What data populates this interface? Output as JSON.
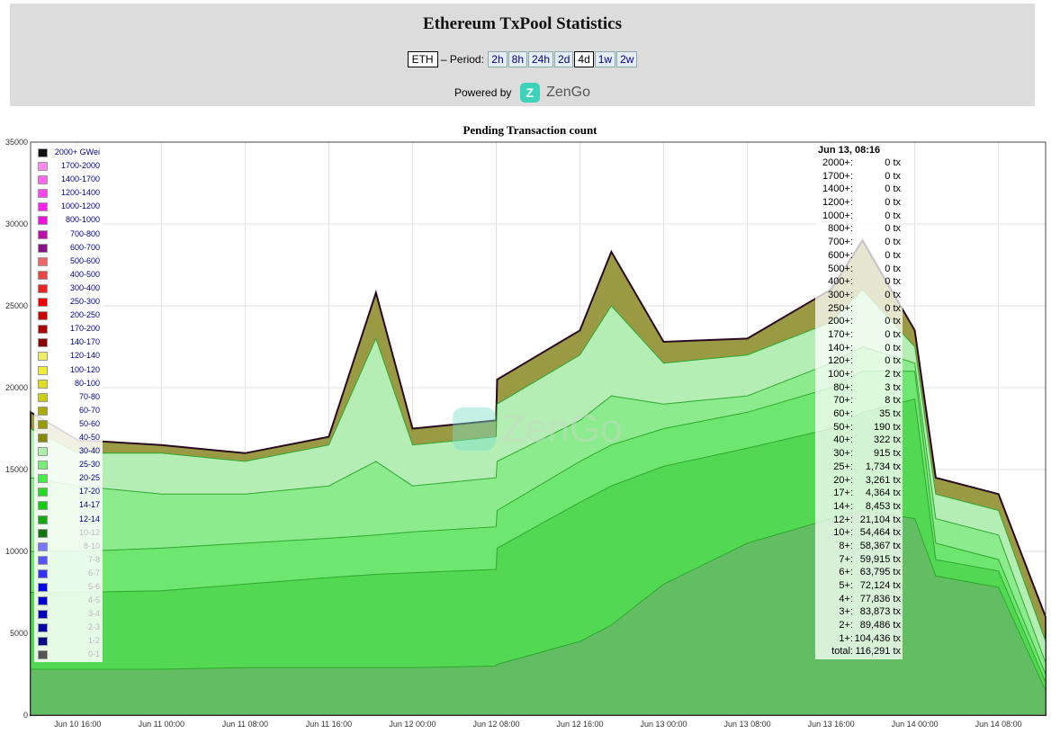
{
  "header": {
    "title": "Ethereum TxPool Statistics",
    "currency": "ETH",
    "period_label": "– Period:",
    "periods": [
      "2h",
      "8h",
      "24h",
      "2d",
      "4d",
      "1w",
      "2w"
    ],
    "active_period": "4d",
    "powered_by": "Powered by",
    "brand": "ZenGo"
  },
  "chart_data": {
    "type": "area",
    "title": "Pending Transaction count",
    "xlabel": "",
    "ylabel": "",
    "ylim": [
      0,
      35000
    ],
    "yticks": [
      0,
      5000,
      10000,
      15000,
      20000,
      25000,
      30000,
      35000
    ],
    "xlim": [
      "2024-06-10 11:30",
      "2024-06-14 12:30"
    ],
    "xticks": [
      "Jun 10 16:00",
      "Jun 11 00:00",
      "Jun 11 08:00",
      "Jun 11 16:00",
      "Jun 12 00:00",
      "Jun 12 08:00",
      "Jun 12 16:00",
      "Jun 13 00:00",
      "Jun 13 08:00",
      "Jun 13 16:00",
      "Jun 14 00:00",
      "Jun 14 08:00"
    ],
    "grid": true,
    "legend_position": "top-left",
    "x": [
      "Jun 10 11:30",
      "Jun 10 16:00",
      "Jun 11 00:00",
      "Jun 11 08:00",
      "Jun 11 16:00",
      "Jun 11 20:30",
      "Jun 12 00:00",
      "Jun 12 07:59",
      "Jun 12 08:05",
      "Jun 12 16:00",
      "Jun 12 19:00",
      "Jun 13 00:00",
      "Jun 13 08:00",
      "Jun 13 16:00",
      "Jun 13 19:00",
      "Jun 14 00:00",
      "Jun 14 02:00",
      "Jun 14 08:00",
      "Jun 14 12:30"
    ],
    "series": [
      {
        "name": "1-2",
        "values": [
          2800,
          2800,
          2800,
          2900,
          2900,
          2900,
          2900,
          3000,
          3100,
          4500,
          5500,
          8000,
          10500,
          12000,
          12500,
          12000,
          8500,
          7800,
          1500
        ]
      },
      {
        "name": "5-6",
        "values": [
          7500,
          7500,
          7600,
          8000,
          8400,
          8600,
          8700,
          8900,
          10200,
          13000,
          14000,
          15200,
          16300,
          17500,
          18500,
          19300,
          9500,
          8800,
          2000
        ]
      },
      {
        "name": "12-14",
        "values": [
          10000,
          10000,
          10200,
          10500,
          10800,
          11000,
          11200,
          11500,
          12500,
          15500,
          16500,
          17500,
          18500,
          20000,
          21000,
          21000,
          10500,
          9500,
          2500
        ]
      },
      {
        "name": "20-25",
        "values": [
          14500,
          14000,
          13500,
          13500,
          14000,
          15500,
          14000,
          14500,
          15500,
          18000,
          19500,
          19000,
          19500,
          21500,
          22500,
          21500,
          12000,
          11000,
          3200
        ]
      },
      {
        "name": "30-40",
        "values": [
          17500,
          16000,
          16000,
          15500,
          16500,
          23000,
          16500,
          17000,
          19000,
          22000,
          25000,
          21500,
          22000,
          24000,
          26000,
          22500,
          13500,
          12500,
          4500
        ]
      },
      {
        "name": "2000+ GWei",
        "values": [
          18500,
          16800,
          16500,
          16000,
          17000,
          25800,
          17500,
          18000,
          20500,
          23500,
          28300,
          22800,
          23000,
          26000,
          29000,
          23500,
          14500,
          13500,
          6000
        ]
      }
    ],
    "legend": [
      {
        "name": "2000+ GWei",
        "color": "#111111",
        "visible": true
      },
      {
        "name": "1700-2000",
        "color": "#ff88ee",
        "visible": true
      },
      {
        "name": "1400-1700",
        "color": "#ff66ee",
        "visible": true
      },
      {
        "name": "1200-1400",
        "color": "#ff44ee",
        "visible": true
      },
      {
        "name": "1000-1200",
        "color": "#ff22ee",
        "visible": true
      },
      {
        "name": "800-1000",
        "color": "#ee11dd",
        "visible": true
      },
      {
        "name": "700-800",
        "color": "#bb11aa",
        "visible": true
      },
      {
        "name": "600-700",
        "color": "#881188",
        "visible": true
      },
      {
        "name": "500-600",
        "color": "#ee6666",
        "visible": true
      },
      {
        "name": "400-500",
        "color": "#ee4444",
        "visible": true
      },
      {
        "name": "300-400",
        "color": "#ee2222",
        "visible": true
      },
      {
        "name": "250-300",
        "color": "#ee0000",
        "visible": true
      },
      {
        "name": "200-250",
        "color": "#cc0000",
        "visible": true
      },
      {
        "name": "170-200",
        "color": "#aa0000",
        "visible": true
      },
      {
        "name": "140-170",
        "color": "#880000",
        "visible": true
      },
      {
        "name": "120-140",
        "color": "#eeee66",
        "visible": true
      },
      {
        "name": "100-120",
        "color": "#eeee33",
        "visible": true
      },
      {
        "name": "80-100",
        "color": "#dddd22",
        "visible": true
      },
      {
        "name": "70-80",
        "color": "#cccc11",
        "visible": true
      },
      {
        "name": "60-70",
        "color": "#aaaa00",
        "visible": true
      },
      {
        "name": "50-60",
        "color": "#999900",
        "visible": true
      },
      {
        "name": "40-50",
        "color": "#888800",
        "visible": true
      },
      {
        "name": "30-40",
        "color": "#aaeeaa",
        "visible": true
      },
      {
        "name": "25-30",
        "color": "#77ee77",
        "visible": true
      },
      {
        "name": "20-25",
        "color": "#44ee44",
        "visible": true
      },
      {
        "name": "17-20",
        "color": "#22dd22",
        "visible": true
      },
      {
        "name": "14-17",
        "color": "#11cc11",
        "visible": true
      },
      {
        "name": "12-14",
        "color": "#11aa11",
        "visible": true
      },
      {
        "name": "10-12",
        "color": "#117711",
        "visible": false
      },
      {
        "name": "8-10",
        "color": "#7777ff",
        "visible": false
      },
      {
        "name": "7-8",
        "color": "#5555ff",
        "visible": false
      },
      {
        "name": "6-7",
        "color": "#3333ff",
        "visible": false
      },
      {
        "name": "5-6",
        "color": "#0000ee",
        "visible": false
      },
      {
        "name": "4-5",
        "color": "#0000cc",
        "visible": false
      },
      {
        "name": "3-4",
        "color": "#0000bb",
        "visible": false
      },
      {
        "name": "2-3",
        "color": "#0000aa",
        "visible": false
      },
      {
        "name": "1-2",
        "color": "#000088",
        "visible": false
      },
      {
        "name": "0-1",
        "color": "#555555",
        "visible": false
      }
    ],
    "tooltip": {
      "time": "Jun 13, 08:16",
      "rows": [
        {
          "label": "2000+:",
          "value": "0 tx"
        },
        {
          "label": "1700+:",
          "value": "0 tx"
        },
        {
          "label": "1400+:",
          "value": "0 tx"
        },
        {
          "label": "1200+:",
          "value": "0 tx"
        },
        {
          "label": "1000+:",
          "value": "0 tx"
        },
        {
          "label": "800+:",
          "value": "0 tx"
        },
        {
          "label": "700+:",
          "value": "0 tx"
        },
        {
          "label": "600+:",
          "value": "0 tx"
        },
        {
          "label": "500+:",
          "value": "0 tx"
        },
        {
          "label": "400+:",
          "value": "0 tx"
        },
        {
          "label": "300+:",
          "value": "0 tx"
        },
        {
          "label": "250+:",
          "value": "0 tx"
        },
        {
          "label": "200+:",
          "value": "0 tx"
        },
        {
          "label": "170+:",
          "value": "0 tx"
        },
        {
          "label": "140+:",
          "value": "0 tx"
        },
        {
          "label": "120+:",
          "value": "0 tx"
        },
        {
          "label": "100+:",
          "value": "2 tx"
        },
        {
          "label": "80+:",
          "value": "3 tx"
        },
        {
          "label": "70+:",
          "value": "8 tx"
        },
        {
          "label": "60+:",
          "value": "35 tx"
        },
        {
          "label": "50+:",
          "value": "190 tx"
        },
        {
          "label": "40+:",
          "value": "322 tx"
        },
        {
          "label": "30+:",
          "value": "915 tx"
        },
        {
          "label": "25+:",
          "value": "1,734 tx"
        },
        {
          "label": "20+:",
          "value": "3,261 tx"
        },
        {
          "label": "17+:",
          "value": "4,364 tx"
        },
        {
          "label": "14+:",
          "value": "8,453 tx"
        },
        {
          "label": "12+:",
          "value": "21,104 tx"
        },
        {
          "label": "10+:",
          "value": "54,464 tx"
        },
        {
          "label": "8+:",
          "value": "58,367 tx"
        },
        {
          "label": "7+:",
          "value": "59,915 tx"
        },
        {
          "label": "6+:",
          "value": "63,795 tx"
        },
        {
          "label": "5+:",
          "value": "72,124 tx"
        },
        {
          "label": "4+:",
          "value": "77,836 tx"
        },
        {
          "label": "3+:",
          "value": "83,873 tx"
        },
        {
          "label": "2+:",
          "value": "89,486 tx"
        },
        {
          "label": "1+:",
          "value": "104,436 tx"
        },
        {
          "label": "total:",
          "value": "116,291 tx"
        }
      ]
    },
    "watermark": "ZenGo",
    "colors": {
      "band_1": "#63be63",
      "band_2": "#52d852",
      "band_3": "#6fe66f",
      "band_4": "#8ceb8c",
      "band_5": "#b4eeb4",
      "outline": "#2a0a22"
    }
  }
}
